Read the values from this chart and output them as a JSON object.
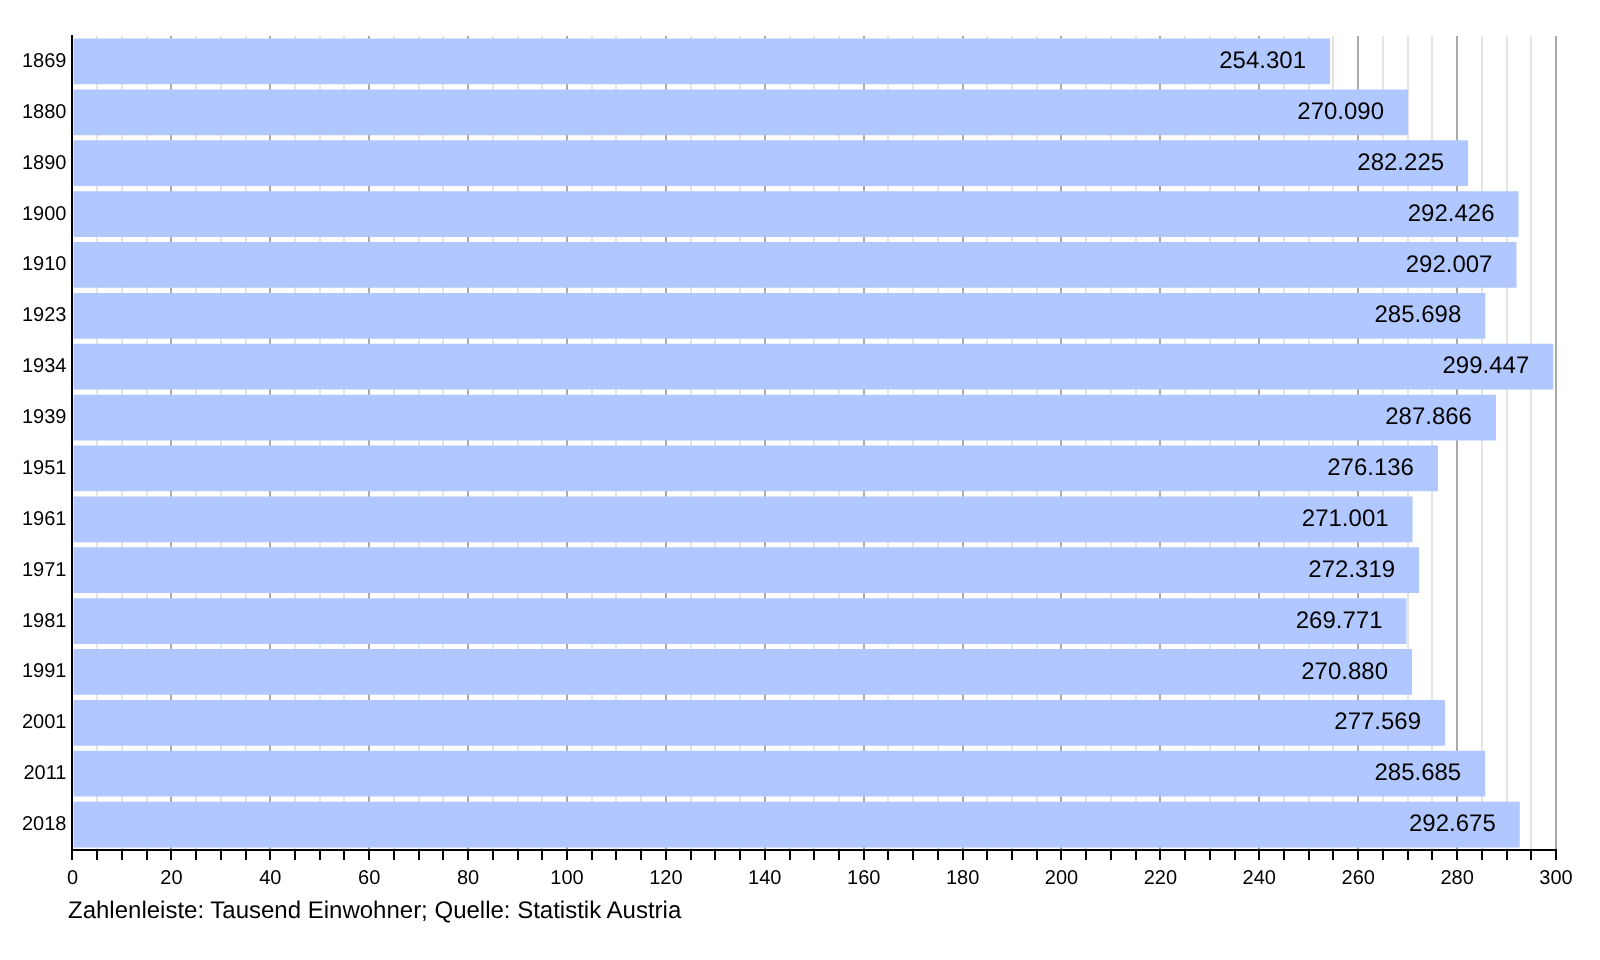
{
  "chart_data": {
    "type": "bar",
    "orientation": "horizontal",
    "categories": [
      "1869",
      "1880",
      "1890",
      "1900",
      "1910",
      "1923",
      "1934",
      "1939",
      "1951",
      "1961",
      "1971",
      "1981",
      "1991",
      "2001",
      "2011",
      "2018"
    ],
    "values": [
      254.301,
      270.09,
      282.225,
      292.426,
      292.007,
      285.698,
      299.447,
      287.866,
      276.136,
      271.001,
      272.319,
      269.771,
      270.88,
      277.569,
      285.685,
      292.675
    ],
    "value_labels": [
      "254.301",
      "270.090",
      "282.225",
      "292.426",
      "292.007",
      "285.698",
      "299.447",
      "287.866",
      "276.136",
      "271.001",
      "272.319",
      "269.771",
      "270.880",
      "277.569",
      "285.685",
      "292.675"
    ],
    "color": "#b0c8ff",
    "xlim": [
      0,
      300
    ],
    "xticks": [
      0,
      {
        "value": 5,
        "label": null
      },
      {
        "value": 10,
        "label": null
      },
      {
        "value": 15,
        "label": null
      },
      20,
      {
        "value": 25,
        "label": null
      },
      {
        "value": 30,
        "label": null
      },
      {
        "value": 35,
        "label": null
      },
      40,
      {
        "value": 45,
        "label": null
      },
      {
        "value": 50,
        "label": null
      },
      {
        "value": 55,
        "label": null
      },
      60,
      {
        "value": 65,
        "label": null
      },
      {
        "value": 70,
        "label": null
      },
      {
        "value": 75,
        "label": null
      },
      80,
      {
        "value": 85,
        "label": null
      },
      {
        "value": 90,
        "label": null
      },
      {
        "value": 95,
        "label": null
      },
      100,
      {
        "value": 105,
        "label": null
      },
      {
        "value": 110,
        "label": null
      },
      {
        "value": 115,
        "label": null
      },
      120,
      {
        "value": 125,
        "label": null
      },
      {
        "value": 130,
        "label": null
      },
      {
        "value": 135,
        "label": null
      },
      140,
      {
        "value": 145,
        "label": null
      },
      {
        "value": 150,
        "label": null
      },
      {
        "value": 155,
        "label": null
      },
      160,
      {
        "value": 165,
        "label": null
      },
      {
        "value": 170,
        "label": null
      },
      {
        "value": 175,
        "label": null
      },
      180,
      {
        "value": 185,
        "label": null
      },
      {
        "value": 190,
        "label": null
      },
      {
        "value": 195,
        "label": null
      },
      200,
      {
        "value": 205,
        "label": null
      },
      {
        "value": 210,
        "label": null
      },
      {
        "value": 215,
        "label": null
      },
      220,
      {
        "value": 225,
        "label": null
      },
      {
        "value": 230,
        "label": null
      },
      {
        "value": 235,
        "label": null
      },
      240,
      {
        "value": 245,
        "label": null
      },
      {
        "value": 250,
        "label": null
      },
      {
        "value": 255,
        "label": null
      },
      260,
      {
        "value": 265,
        "label": null
      },
      {
        "value": 270,
        "label": null
      },
      {
        "value": 275,
        "label": null
      },
      280,
      {
        "value": 285,
        "label": null
      },
      {
        "value": 290,
        "label": null
      },
      {
        "value": 295,
        "label": null
      },
      300
    ],
    "grid": "x",
    "annotations": [
      "Zahlenleiste: Tausend Einwohner; Quelle: Statistik Austria"
    ]
  }
}
